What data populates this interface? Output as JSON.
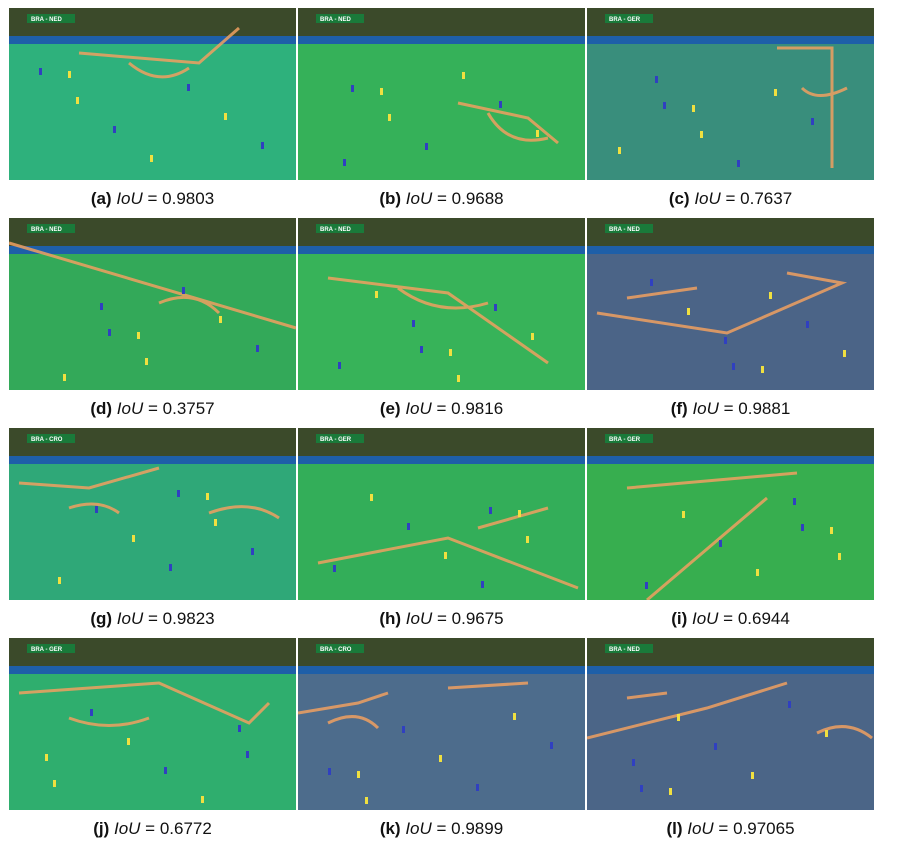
{
  "panels": [
    {
      "label": "(a)",
      "metric": "IoU",
      "value": "0.9803",
      "overlay": "#2ec4a0",
      "score": "BRA",
      "score2": "NED"
    },
    {
      "label": "(b)",
      "metric": "IoU",
      "value": "0.9688",
      "overlay": "#39c46a",
      "score": "BRA",
      "score2": "NED"
    },
    {
      "label": "(c)",
      "metric": "IoU",
      "value": "0.7637",
      "overlay": "#3f8fa0",
      "score": "BRA",
      "score2": "GER"
    },
    {
      "label": "(d)",
      "metric": "IoU",
      "value": "0.3757",
      "overlay": "#35b86a",
      "score": "BRA",
      "score2": "NED"
    },
    {
      "label": "(e)",
      "metric": "IoU",
      "value": "0.9816",
      "overlay": "#3cc86a",
      "score": "BRA",
      "score2": "NED"
    },
    {
      "label": "(f)",
      "metric": "IoU",
      "value": "0.9881",
      "overlay": "#5b4fb0",
      "score": "BRA",
      "score2": "NED"
    },
    {
      "label": "(g)",
      "metric": "IoU",
      "value": "0.9823",
      "overlay": "#2fb79a",
      "score": "BRA",
      "score2": "CRO"
    },
    {
      "label": "(h)",
      "metric": "IoU",
      "value": "0.9675",
      "overlay": "#36c06a",
      "score": "BRA",
      "score2": "GER"
    },
    {
      "label": "(i)",
      "metric": "IoU",
      "value": "0.6944",
      "overlay": "#3cc05a",
      "score": "BRA",
      "score2": "GER"
    },
    {
      "label": "(j)",
      "metric": "IoU",
      "value": "0.6772",
      "overlay": "#2fc08a",
      "score": "BRA",
      "score2": "GER"
    },
    {
      "label": "(k)",
      "metric": "IoU",
      "value": "0.9899",
      "overlay": "#5e5ab8",
      "score": "BRA",
      "score2": "CRO"
    },
    {
      "label": "(l)",
      "metric": "IoU",
      "value": "0.97065",
      "overlay": "#5a50b0",
      "score": "BRA",
      "score2": "NED"
    }
  ],
  "colors": {
    "crowd": "#3b4a2a",
    "pitch": "#2f8c3a",
    "line": "#f0a060",
    "banner": "#1e5fa8"
  }
}
